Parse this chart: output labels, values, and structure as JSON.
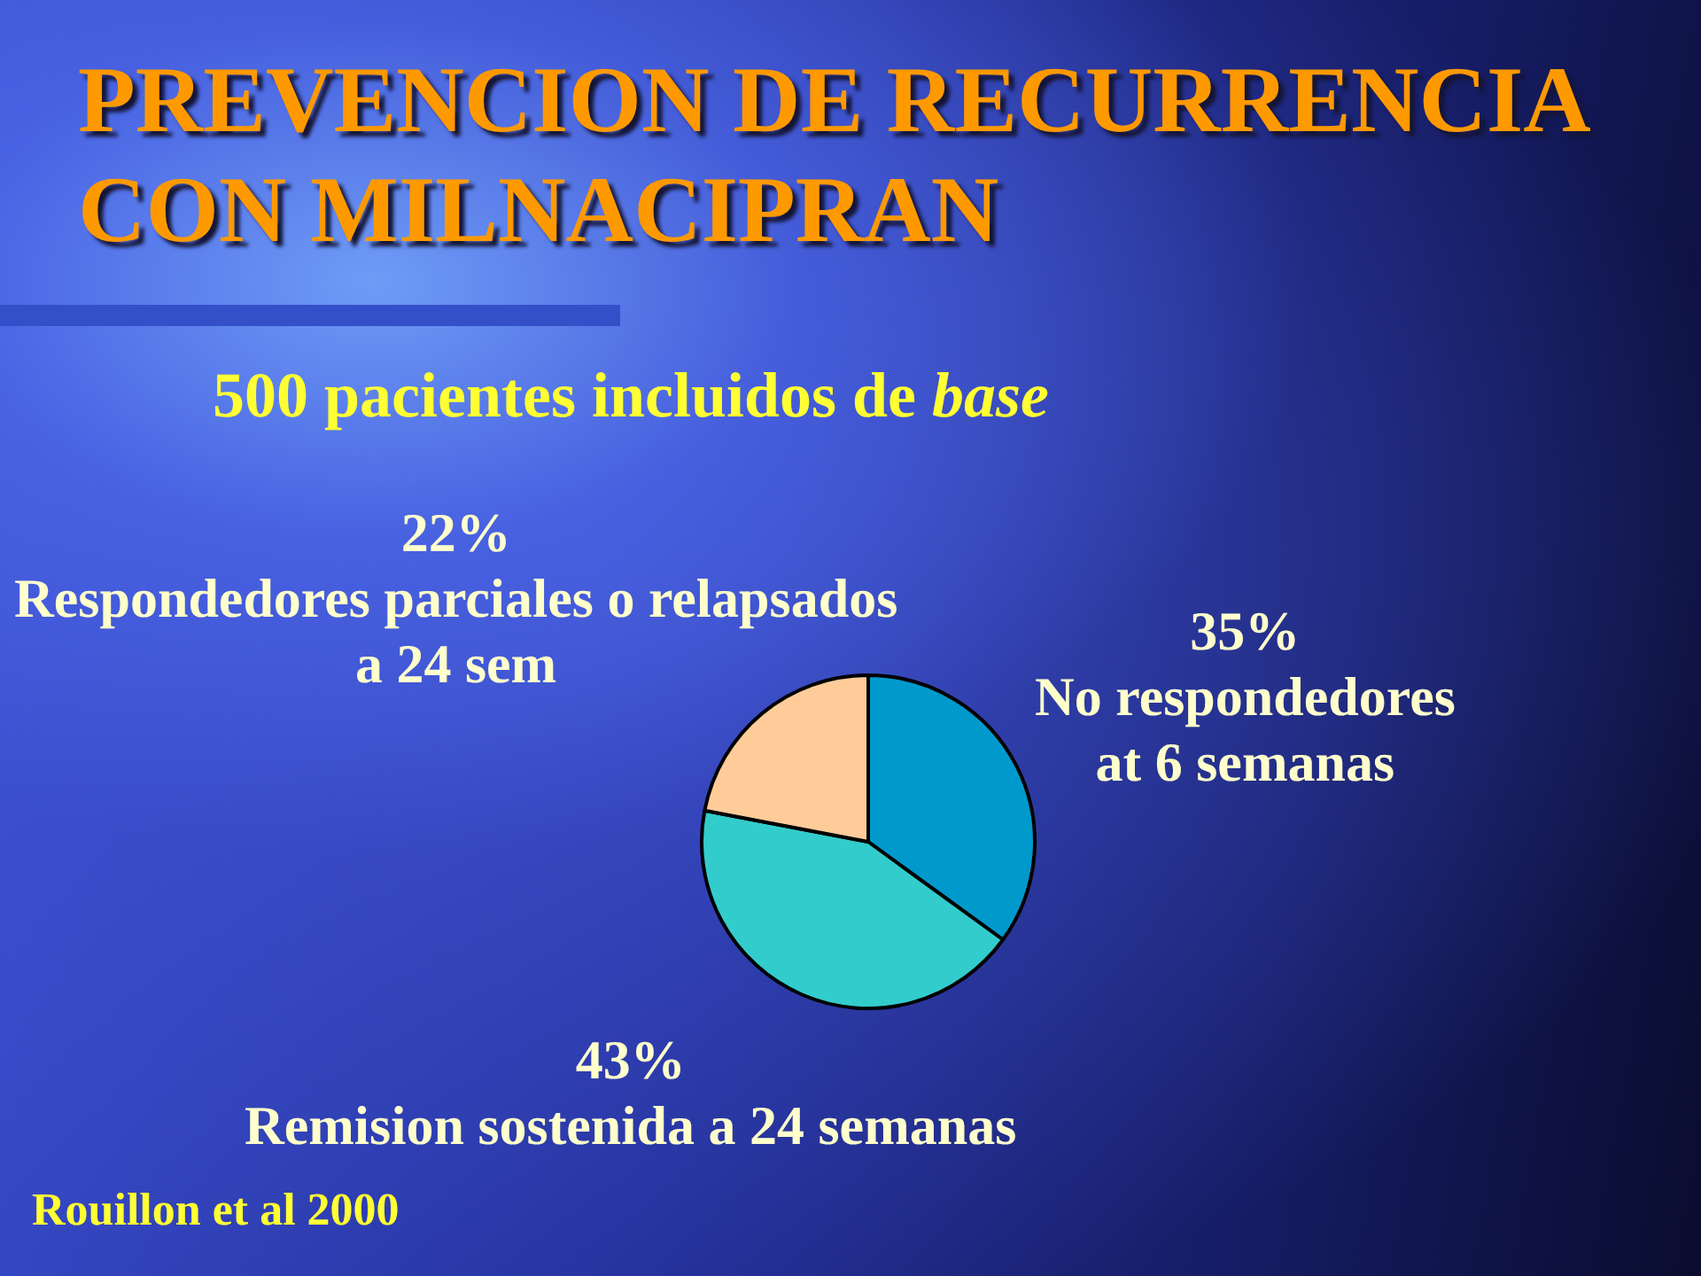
{
  "chart_data": {
    "type": "pie",
    "title": "PREVENCION DE RECURRENCIA CON MILNACIPRAN",
    "subtitle": "500 pacientes incluidos de base",
    "categories": [
      "No respondedores at 6 semanas",
      "Remision sostenida a 24 semanas",
      "Respondedores parciales o relapsados a 24 sem"
    ],
    "values": [
      35,
      43,
      22
    ],
    "colors": [
      "#0099cc",
      "#33cccc",
      "#ffcc99"
    ],
    "value_labels": [
      "35%",
      "43%",
      "22%"
    ],
    "annotations": [
      "Rouillon et al 2000"
    ]
  }
}
